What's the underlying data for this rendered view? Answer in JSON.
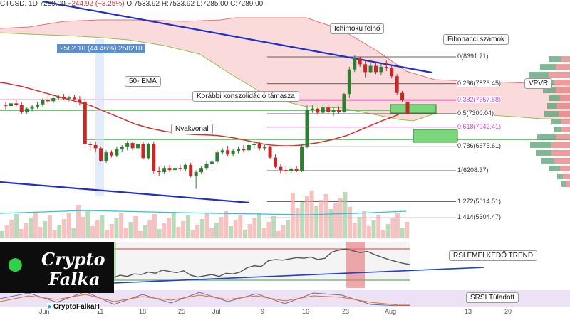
{
  "header": {
    "symbol": "CTUSD",
    "interval": "1D",
    "last": "7289.00",
    "change": "−244.92 (−3.25%)",
    "open": "O:7533.92",
    "high": "H:7533.92",
    "low": "L:7285.00",
    "close": "C:7289.00"
  },
  "annotations": {
    "ichimoku": "Ichimoku felhő",
    "fibonacci": "Fibonacci számok",
    "ema": "50- EMA",
    "support": "Korábbi konszolidáció támasza",
    "neckline": "Nyakvonal",
    "vpvr": "VPVR",
    "rsi_trend": "RSI EMELKEDŐ TREND",
    "srsi": "SRSI Túladott",
    "measure": "2582.10 (44.46%) 258210"
  },
  "logo": {
    "line1": "Crypto",
    "line2": "Falka",
    "handle": "CryptoFalkaH"
  },
  "chart_data": {
    "type": "candlestick",
    "x_labels": [
      "Jun",
      "11",
      "18",
      "25",
      "Jul",
      "9",
      "16",
      "23",
      "Aug",
      "13",
      "20"
    ],
    "fib_levels": [
      {
        "ratio": "0",
        "price": 8391.71,
        "label": "0(8391.71)",
        "color": "#333333"
      },
      {
        "ratio": "0.236",
        "price": 7876.45,
        "label": "0.236(7876.45)",
        "color": "#333333"
      },
      {
        "ratio": "0.382",
        "price": 7557.68,
        "label": "0.382(7557.68)",
        "color": "#e040e0"
      },
      {
        "ratio": "0.5",
        "price": 7300.04,
        "label": "0.5(7300.04)",
        "color": "#333333"
      },
      {
        "ratio": "0.618",
        "price": 7042.41,
        "label": "0.618(7042.41)",
        "color": "#e040e0"
      },
      {
        "ratio": "0.786",
        "price": 6675.61,
        "label": "0.786(6675.61)",
        "color": "#333333"
      },
      {
        "ratio": "1",
        "price": 6208.37,
        "label": "1(6208.37)",
        "color": "#333333"
      },
      {
        "ratio": "1.272",
        "price": 5614.51,
        "label": "1.272(5614.51)",
        "color": "#333333"
      },
      {
        "ratio": "1.414",
        "price": 5304.47,
        "label": "1.414(5304.47)",
        "color": "#333333"
      }
    ],
    "candles": [
      [
        7460,
        7520,
        7380,
        7450
      ],
      [
        7450,
        7530,
        7410,
        7500
      ],
      [
        7500,
        7560,
        7440,
        7470
      ],
      [
        7470,
        7520,
        7300,
        7340
      ],
      [
        7340,
        7420,
        7300,
        7400
      ],
      [
        7400,
        7470,
        7350,
        7440
      ],
      [
        7440,
        7520,
        7400,
        7480
      ],
      [
        7480,
        7600,
        7440,
        7570
      ],
      [
        7570,
        7640,
        7500,
        7540
      ],
      [
        7540,
        7620,
        7500,
        7600
      ],
      [
        7600,
        7660,
        7560,
        7620
      ],
      [
        7620,
        7680,
        7560,
        7590
      ],
      [
        7590,
        7640,
        7540,
        7610
      ],
      [
        7610,
        7660,
        7560,
        7580
      ],
      [
        7580,
        7640,
        7460,
        7520
      ],
      [
        7520,
        7560,
        6700,
        6720
      ],
      [
        6720,
        6780,
        6600,
        6700
      ],
      [
        6700,
        6760,
        6560,
        6640
      ],
      [
        6640,
        6660,
        6380,
        6400
      ],
      [
        6400,
        6600,
        6360,
        6560
      ],
      [
        6560,
        6600,
        6460,
        6500
      ],
      [
        6500,
        6660,
        6470,
        6620
      ],
      [
        6620,
        6700,
        6560,
        6660
      ],
      [
        6660,
        6780,
        6600,
        6740
      ],
      [
        6740,
        6770,
        6600,
        6640
      ],
      [
        6640,
        6760,
        6600,
        6720
      ],
      [
        6720,
        6760,
        6420,
        6450
      ],
      [
        6450,
        6740,
        6420,
        6720
      ],
      [
        6720,
        6760,
        6160,
        6200
      ],
      [
        6200,
        6280,
        6100,
        6180
      ],
      [
        6180,
        6300,
        6150,
        6260
      ],
      [
        6260,
        6320,
        6180,
        6220
      ],
      [
        6220,
        6300,
        6120,
        6260
      ],
      [
        6260,
        6320,
        6200,
        6250
      ],
      [
        6250,
        6350,
        6200,
        6320
      ],
      [
        6320,
        6360,
        6080,
        6100
      ],
      [
        6100,
        6220,
        5860,
        6180
      ],
      [
        6180,
        6300,
        6160,
        6260
      ],
      [
        6260,
        6380,
        6220,
        6340
      ],
      [
        6340,
        6420,
        6300,
        6380
      ],
      [
        6380,
        6600,
        6350,
        6560
      ],
      [
        6560,
        6640,
        6520,
        6600
      ],
      [
        6600,
        6680,
        6480,
        6520
      ],
      [
        6520,
        6620,
        6480,
        6580
      ],
      [
        6580,
        6660,
        6540,
        6620
      ],
      [
        6620,
        6700,
        6560,
        6600
      ],
      [
        6600,
        6740,
        6560,
        6700
      ],
      [
        6700,
        6780,
        6640,
        6720
      ],
      [
        6720,
        6760,
        6600,
        6640
      ],
      [
        6640,
        6700,
        6600,
        6660
      ],
      [
        6660,
        6680,
        6440,
        6460
      ],
      [
        6460,
        6520,
        6260,
        6280
      ],
      [
        6280,
        6340,
        6160,
        6220
      ],
      [
        6220,
        6300,
        6140,
        6200
      ],
      [
        6200,
        6280,
        6160,
        6250
      ],
      [
        6250,
        6300,
        6180,
        6200
      ],
      [
        6200,
        6700,
        6180,
        6660
      ],
      [
        6660,
        7460,
        6640,
        7380
      ],
      [
        7380,
        7460,
        7320,
        7400
      ],
      [
        7400,
        7420,
        7280,
        7320
      ],
      [
        7320,
        7460,
        7280,
        7420
      ],
      [
        7420,
        7480,
        7300,
        7340
      ],
      [
        7340,
        7420,
        7260,
        7380
      ],
      [
        7380,
        7440,
        7300,
        7340
      ],
      [
        7340,
        7700,
        7320,
        7680
      ],
      [
        7680,
        8200,
        7600,
        8150
      ],
      [
        8150,
        8420,
        8100,
        8360
      ],
      [
        8360,
        8400,
        8200,
        8250
      ],
      [
        8250,
        8340,
        8000,
        8100
      ],
      [
        8100,
        8280,
        8080,
        8220
      ],
      [
        8220,
        8300,
        8060,
        8100
      ],
      [
        8100,
        8260,
        8040,
        8200
      ],
      [
        8200,
        8320,
        8120,
        8180
      ],
      [
        8180,
        8240,
        7980,
        8020
      ],
      [
        8020,
        8060,
        7660,
        7700
      ],
      [
        7700,
        7740,
        7520,
        7560
      ],
      [
        7534,
        7534,
        7285,
        7289
      ]
    ],
    "ema50": [
      7900,
      7880,
      7850,
      7820,
      7780,
      7740,
      7700,
      7660,
      7620,
      7580,
      7540,
      7500,
      7460,
      7400,
      7340,
      7280,
      7220,
      7160,
      7100,
      7060,
      7020,
      6990,
      6960,
      6940,
      6920,
      6910,
      6900,
      6895,
      6890,
      6880,
      6860,
      6840,
      6810,
      6780,
      6750,
      6720,
      6700,
      6690,
      6685,
      6690,
      6700,
      6720,
      6740,
      6770,
      6800,
      6840,
      6880,
      6940,
      7000,
      7060,
      7120,
      7180,
      7230,
      7290
    ],
    "rsi": [
      38,
      41,
      44,
      40,
      42,
      48,
      50,
      52,
      55,
      53,
      51,
      49,
      45,
      38,
      30,
      27,
      29,
      33,
      31,
      35,
      34,
      38,
      36,
      41,
      39,
      37,
      40,
      33,
      30,
      32,
      34,
      31,
      36,
      35,
      38,
      45,
      48,
      47,
      56,
      58,
      57,
      59,
      61,
      60,
      62,
      58,
      60,
      70,
      73,
      75,
      72,
      69,
      71,
      66,
      62,
      58,
      55,
      52,
      50
    ],
    "vpvr": [
      {
        "price": 8350,
        "buy": 18,
        "sell": 12
      },
      {
        "price": 8200,
        "buy": 22,
        "sell": 20
      },
      {
        "price": 8050,
        "buy": 28,
        "sell": 30
      },
      {
        "price": 7900,
        "buy": 24,
        "sell": 22
      },
      {
        "price": 7750,
        "buy": 18,
        "sell": 20
      },
      {
        "price": 7600,
        "buy": 16,
        "sell": 14
      },
      {
        "price": 7450,
        "buy": 14,
        "sell": 18
      },
      {
        "price": 7300,
        "buy": 20,
        "sell": 16
      },
      {
        "price": 7150,
        "buy": 14,
        "sell": 12
      },
      {
        "price": 7000,
        "buy": 10,
        "sell": 12
      },
      {
        "price": 6850,
        "buy": 26,
        "sell": 20
      },
      {
        "price": 6700,
        "buy": 30,
        "sell": 26
      },
      {
        "price": 6550,
        "buy": 22,
        "sell": 26
      },
      {
        "price": 6400,
        "buy": 18,
        "sell": 22
      },
      {
        "price": 6250,
        "buy": 16,
        "sell": 14
      },
      {
        "price": 6100,
        "buy": 8,
        "sell": 10
      },
      {
        "price": 5950,
        "buy": 6,
        "sell": 6
      }
    ],
    "colors": {
      "up": "#2e7d32",
      "down": "#c62828",
      "ema": "#d32f2f",
      "trend": "#1f2fc9",
      "cloud": "#f8c6c6",
      "cloud_edge": "#e57373",
      "cloud_lower": "#8bc34a",
      "neck": "#4caf50",
      "rsi": "#555555",
      "rsi_trend": "#1f3fd6",
      "bb": "#26c6da"
    }
  }
}
